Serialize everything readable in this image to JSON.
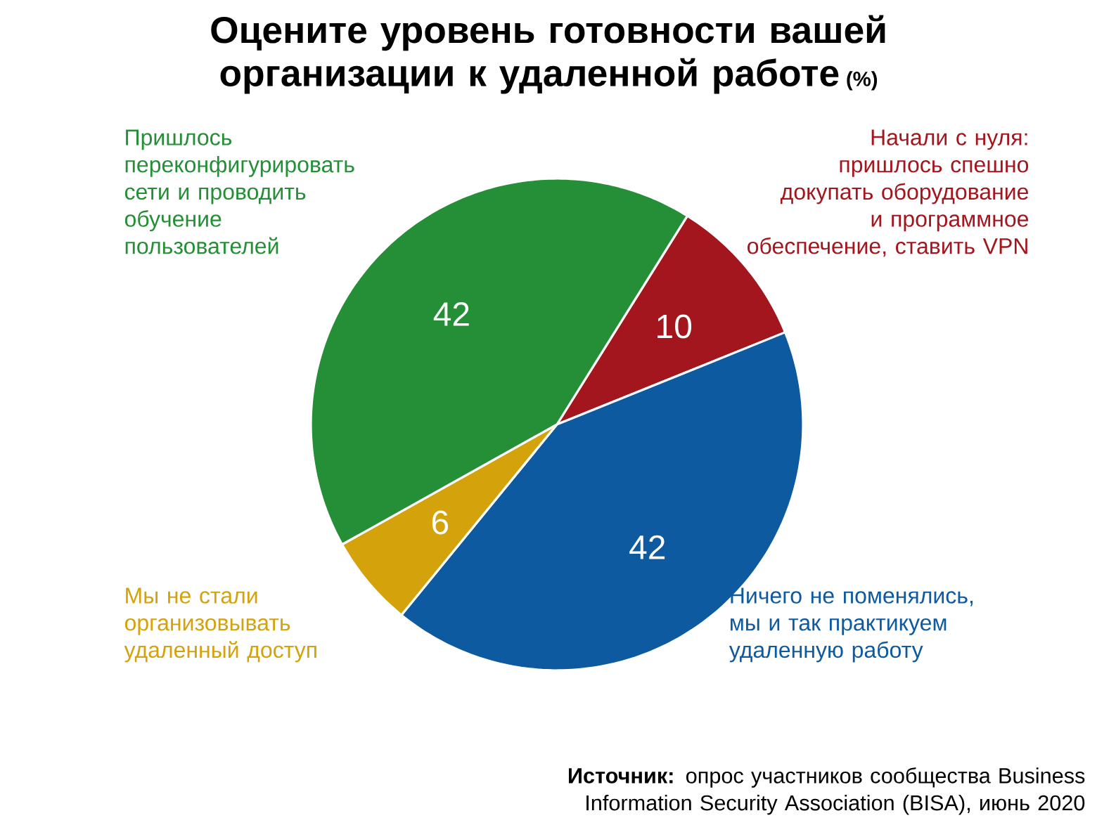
{
  "chart_data": {
    "type": "pie",
    "title": "Оцените уровень готовности вашей организации к удаленной работе",
    "subtitle": "(%)",
    "categories": [
      "Начали с нуля: пришлось спешно докупать оборудование и программное обеспечение, ставить VPN",
      "Ничего не поменялись, мы и так практикуем удаленную работу",
      "Мы не стали организовывать удаленный доступ",
      "Пришлось переконфигурировать сети и проводить обучение пользователей"
    ],
    "values": [
      10,
      42,
      6,
      42
    ],
    "colors": [
      "#a3161e",
      "#0e5aa0",
      "#d4a20a",
      "#248f36"
    ],
    "data_labels": true,
    "annotations": [
      "**Источник:** опрос участников сообщества Business Information Security Association (BISA), июнь 2020"
    ]
  }
}
